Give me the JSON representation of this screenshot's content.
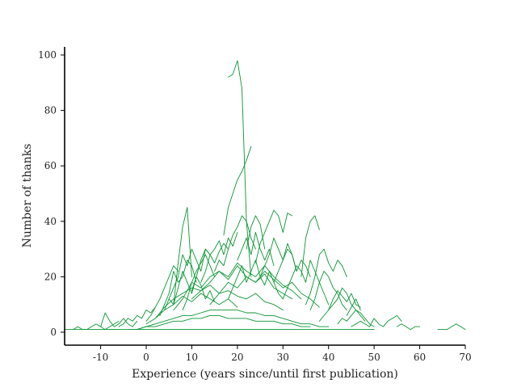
{
  "chart_data": {
    "type": "line",
    "xlabel": "Experience (years since/until first publication)",
    "ylabel": "Number of thanks",
    "xlim": [
      -18,
      70
    ],
    "ylim": [
      -5,
      103
    ],
    "x_ticks": [
      -10,
      0,
      10,
      20,
      30,
      40,
      50,
      60,
      70
    ],
    "y_ticks": [
      0,
      20,
      40,
      60,
      80,
      100
    ],
    "x_tick_labels": [
      "-10",
      "0",
      "10",
      "20",
      "30",
      "40",
      "50",
      "60",
      "70"
    ],
    "y_tick_labels": [
      "0",
      "20",
      "40",
      "60",
      "80",
      "100"
    ],
    "grid": false,
    "legend": "none",
    "line_color": "#0a9632",
    "series_note_values_estimated": true,
    "series": [
      {
        "x": [
          18,
          19,
          20,
          21,
          22,
          23
        ],
        "y": [
          92,
          93,
          98,
          88,
          40,
          20
        ]
      },
      {
        "x": [
          17,
          18,
          19,
          20,
          21,
          22,
          23
        ],
        "y": [
          35,
          45,
          50,
          55,
          58,
          62,
          67
        ]
      },
      {
        "x": [
          6,
          7,
          8,
          9,
          10
        ],
        "y": [
          10,
          25,
          38,
          45,
          20
        ]
      },
      {
        "x": [
          24,
          25,
          26,
          27,
          28,
          29,
          30,
          31,
          32
        ],
        "y": [
          25,
          32,
          36,
          40,
          44,
          42,
          36,
          43,
          42
        ]
      },
      {
        "x": [
          34,
          35,
          36,
          37,
          38
        ],
        "y": [
          20,
          34,
          40,
          42,
          37
        ]
      },
      {
        "x": [
          22,
          23,
          24,
          25,
          26
        ],
        "y": [
          30,
          38,
          42,
          39,
          30
        ]
      },
      {
        "x": [
          8,
          9,
          10,
          11,
          12,
          13,
          14,
          15
        ],
        "y": [
          8,
          12,
          18,
          22,
          25,
          28,
          24,
          20
        ]
      },
      {
        "x": [
          10,
          11,
          12,
          13,
          14,
          15,
          16,
          17,
          18
        ],
        "y": [
          15,
          20,
          26,
          30,
          28,
          25,
          29,
          32,
          30
        ]
      },
      {
        "x": [
          35,
          36,
          37,
          38,
          39,
          40,
          41,
          42,
          43,
          44
        ],
        "y": [
          10,
          14,
          20,
          28,
          30,
          25,
          22,
          26,
          24,
          20
        ]
      },
      {
        "x": [
          40,
          41,
          42,
          43,
          44,
          45,
          46,
          47
        ],
        "y": [
          8,
          12,
          15,
          13,
          11,
          14,
          10,
          9
        ]
      },
      {
        "x": [
          45,
          46,
          47,
          48,
          49,
          50,
          51,
          52,
          53,
          54,
          55,
          56
        ],
        "y": [
          2,
          3,
          4,
          3,
          2,
          5,
          3,
          2,
          4,
          5,
          6,
          4
        ]
      },
      {
        "x": [
          44,
          45,
          46,
          47
        ],
        "y": [
          6,
          9,
          12,
          8
        ]
      },
      {
        "x": [
          55,
          56,
          57,
          58,
          59,
          60
        ],
        "y": [
          2,
          3,
          2,
          1,
          2,
          2
        ]
      },
      {
        "x": [
          64,
          65,
          66,
          67,
          68,
          69,
          70
        ],
        "y": [
          1,
          1,
          1,
          2,
          3,
          2,
          1
        ]
      },
      {
        "x": [
          -18,
          -16,
          -14,
          -12,
          -10,
          -8,
          -6
        ],
        "y": [
          1,
          1,
          1,
          1,
          1,
          1,
          1
        ]
      },
      {
        "x": [
          -16,
          -15,
          -14,
          -13,
          -12,
          -11,
          -10,
          -9,
          -8,
          -7,
          -6
        ],
        "y": [
          1,
          2,
          1,
          1,
          2,
          3,
          2,
          1,
          2,
          3,
          4
        ]
      },
      {
        "x": [
          -10,
          -9,
          -8,
          -7,
          -6,
          -5,
          -4,
          -3,
          -2
        ],
        "y": [
          2,
          7,
          4,
          2,
          3,
          5,
          3,
          2,
          4
        ]
      },
      {
        "x": [
          -6,
          -5,
          -4,
          -3,
          -2,
          -1,
          0,
          1,
          2
        ],
        "y": [
          2,
          3,
          5,
          4,
          6,
          5,
          8,
          7,
          9
        ]
      },
      {
        "x": [
          0,
          1,
          2,
          3,
          4,
          5,
          6,
          7
        ],
        "y": [
          4,
          6,
          9,
          12,
          16,
          20,
          24,
          22
        ]
      },
      {
        "x": [
          3,
          4,
          5,
          6,
          7,
          8,
          9,
          10,
          11
        ],
        "y": [
          6,
          10,
          14,
          22,
          18,
          20,
          26,
          24,
          18
        ]
      },
      {
        "x": [
          5,
          6,
          7,
          8,
          9,
          10,
          11,
          12,
          13,
          14
        ],
        "y": [
          12,
          16,
          20,
          28,
          24,
          30,
          26,
          22,
          30,
          28
        ]
      },
      {
        "x": [
          12,
          13,
          14,
          15,
          16,
          17,
          18,
          19,
          20
        ],
        "y": [
          18,
          22,
          28,
          30,
          33,
          28,
          34,
          31,
          36
        ]
      },
      {
        "x": [
          15,
          16,
          17,
          18,
          19,
          20,
          21,
          22,
          23,
          24
        ],
        "y": [
          22,
          26,
          24,
          30,
          35,
          38,
          42,
          40,
          34,
          30
        ]
      },
      {
        "x": [
          20,
          21,
          22,
          23,
          24,
          25,
          26,
          27,
          28
        ],
        "y": [
          26,
          30,
          34,
          28,
          36,
          30,
          26,
          30,
          24
        ]
      },
      {
        "x": [
          25,
          26,
          27,
          28,
          29,
          30,
          31,
          32,
          33
        ],
        "y": [
          20,
          24,
          28,
          34,
          30,
          26,
          32,
          28,
          22
        ]
      },
      {
        "x": [
          28,
          29,
          30,
          31,
          32,
          33,
          34,
          35,
          36
        ],
        "y": [
          18,
          22,
          26,
          30,
          28,
          22,
          26,
          24,
          20
        ]
      },
      {
        "x": [
          30,
          31,
          32,
          33,
          34,
          35,
          36,
          37,
          38,
          39,
          40
        ],
        "y": [
          12,
          16,
          20,
          24,
          22,
          18,
          26,
          22,
          18,
          14,
          10
        ]
      },
      {
        "x": [
          36,
          37,
          38,
          39,
          40,
          41,
          42,
          43,
          44
        ],
        "y": [
          8,
          12,
          18,
          22,
          20,
          16,
          14,
          10,
          8
        ]
      },
      {
        "x": [
          38,
          39,
          40,
          41,
          42,
          43,
          44,
          45,
          46,
          47,
          48
        ],
        "y": [
          4,
          6,
          8,
          10,
          12,
          16,
          14,
          10,
          8,
          6,
          4
        ]
      },
      {
        "x": [
          42,
          43,
          44,
          45,
          46,
          47,
          48,
          49,
          50
        ],
        "y": [
          3,
          5,
          4,
          6,
          8,
          7,
          5,
          3,
          2
        ]
      },
      {
        "x": [
          -2,
          0,
          2,
          4,
          6,
          8,
          10,
          12,
          14,
          16,
          18,
          20,
          22,
          24,
          26,
          28,
          30,
          32,
          34,
          36,
          38,
          40
        ],
        "y": [
          1,
          2,
          3,
          4,
          5,
          6,
          6,
          7,
          8,
          8,
          8,
          8,
          7,
          7,
          6,
          6,
          5,
          4,
          3,
          3,
          2,
          2
        ]
      },
      {
        "x": [
          -4,
          -2,
          0,
          2,
          4,
          6,
          8,
          10,
          12,
          14,
          16,
          18,
          20,
          22,
          24,
          26,
          28,
          30,
          32,
          34,
          36
        ],
        "y": [
          1,
          1,
          2,
          2,
          3,
          4,
          4,
          5,
          5,
          6,
          6,
          5,
          5,
          5,
          4,
          4,
          4,
          3,
          3,
          2,
          2
        ]
      },
      {
        "x": [
          2,
          4,
          6,
          8,
          10,
          12,
          14,
          16,
          18,
          20,
          22,
          24,
          26,
          28,
          30
        ],
        "y": [
          5,
          9,
          12,
          14,
          16,
          15,
          17,
          14,
          15,
          13,
          12,
          14,
          11,
          10,
          8
        ]
      },
      {
        "x": [
          6,
          8,
          10,
          12,
          14,
          16,
          18,
          20,
          22,
          24,
          26,
          28,
          30,
          32
        ],
        "y": [
          8,
          12,
          18,
          16,
          20,
          22,
          19,
          24,
          20,
          18,
          21,
          16,
          14,
          12
        ]
      },
      {
        "x": [
          0,
          2,
          4,
          6,
          8,
          10,
          12,
          14,
          16,
          18,
          20
        ],
        "y": [
          3,
          5,
          8,
          10,
          13,
          11,
          14,
          12,
          10,
          12,
          9
        ]
      },
      {
        "x": [
          10,
          12,
          14,
          16,
          18,
          20,
          22,
          24,
          26,
          28,
          30,
          32,
          34
        ],
        "y": [
          12,
          15,
          18,
          22,
          20,
          25,
          22,
          20,
          24,
          20,
          17,
          15,
          12
        ]
      },
      {
        "x": [
          -8,
          -6,
          -4,
          -2,
          0,
          2,
          4,
          6,
          8,
          10,
          12,
          14,
          16,
          18,
          20,
          22,
          24,
          26,
          28,
          30,
          32,
          34,
          36,
          38,
          40,
          42,
          44,
          46,
          48,
          50
        ],
        "y": [
          1,
          1,
          1,
          1,
          1,
          1,
          1,
          1,
          1,
          1,
          1,
          1,
          1,
          1,
          1,
          1,
          1,
          1,
          1,
          1,
          1,
          1,
          1,
          1,
          1,
          1,
          1,
          1,
          1,
          1
        ]
      },
      {
        "x": [
          14,
          16,
          18,
          20,
          22,
          24,
          26,
          28,
          30,
          32,
          34,
          36,
          38
        ],
        "y": [
          10,
          14,
          18,
          16,
          20,
          18,
          22,
          19,
          16,
          18,
          14,
          12,
          9
        ]
      },
      {
        "x": [
          4,
          5,
          6,
          7,
          8,
          9,
          10,
          11,
          12,
          13,
          14,
          15
        ],
        "y": [
          8,
          12,
          10,
          16,
          22,
          18,
          14,
          20,
          17,
          12,
          15,
          11
        ]
      },
      {
        "x": [
          18,
          19,
          20,
          21,
          22,
          23,
          24,
          25,
          26,
          27,
          28,
          29,
          30
        ],
        "y": [
          12,
          16,
          20,
          24,
          18,
          22,
          26,
          20,
          17,
          22,
          18,
          14,
          12
        ]
      }
    ]
  }
}
